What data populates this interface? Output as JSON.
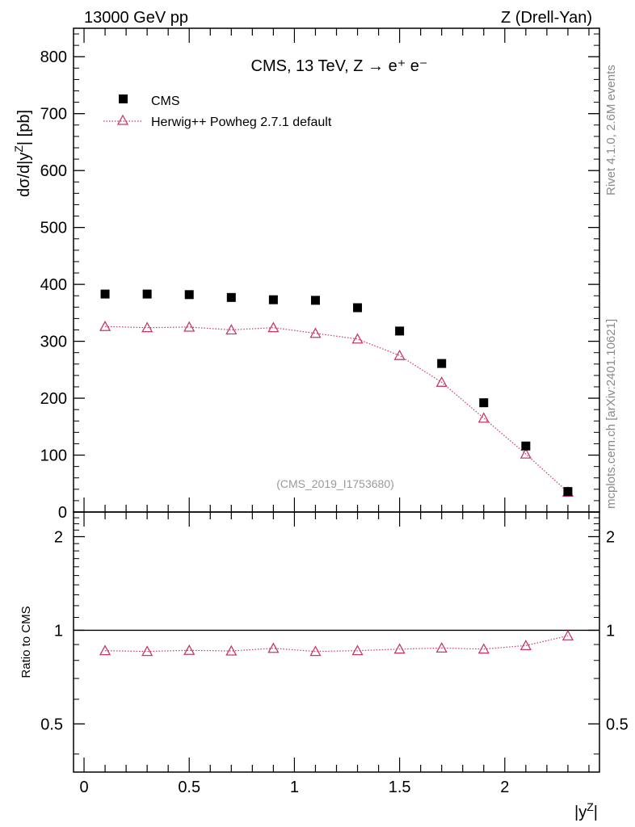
{
  "header": {
    "left": "13000 GeV pp",
    "right": "Z (Drell-Yan)"
  },
  "side_labels": {
    "rivet": "Rivet 4.1.0,  2.6M events",
    "mcplots": "mcplots.cern.ch [arXiv:2401.10621]"
  },
  "chart_data": [
    {
      "type": "scatter",
      "panel": "main",
      "title": "CMS, 13 TeV, Z →  e⁺ e⁻",
      "ylabel": "dσ/d|y^Z| [pb]",
      "analysis_tag": "(CMS_2019_I1753680)",
      "xlim": [
        -0.05,
        2.45
      ],
      "ylim": [
        0,
        850
      ],
      "yticks": [
        0,
        100,
        200,
        300,
        400,
        500,
        600,
        700,
        800
      ],
      "x": [
        0.1,
        0.3,
        0.5,
        0.7,
        0.9,
        1.1,
        1.3,
        1.5,
        1.7,
        1.9,
        2.1,
        2.3
      ],
      "legend_position": "top-left",
      "series": [
        {
          "name": "CMS",
          "marker": "square",
          "color": "#000000",
          "values": [
            383,
            383,
            382,
            377,
            373,
            372,
            359,
            318,
            261,
            192,
            116,
            36
          ]
        },
        {
          "name": "Herwig++ Powheg 2.7.1 default",
          "marker": "triangle",
          "line": "dotted",
          "color": "#c8386c",
          "values": [
            326,
            324,
            325,
            320,
            324,
            314,
            304,
            275,
            228,
            165,
            102,
            35
          ]
        }
      ]
    },
    {
      "type": "line",
      "panel": "ratio",
      "ylabel": "Ratio to CMS",
      "xlabel": "|y^Z|",
      "xlim": [
        -0.05,
        2.45
      ],
      "ylim": [
        0.35,
        2.4
      ],
      "ytick_labels": [
        "0.5",
        "1",
        "2"
      ],
      "ytick_values": [
        0.5,
        1,
        2
      ],
      "xtick_labels": [
        "0",
        "0.5",
        "1",
        "1.5",
        "2"
      ],
      "xtick_values": [
        0,
        0.5,
        1,
        1.5,
        2
      ],
      "reference": 1.0,
      "x": [
        0.1,
        0.3,
        0.5,
        0.7,
        0.9,
        1.1,
        1.3,
        1.5,
        1.7,
        1.9,
        2.1,
        2.3
      ],
      "series": [
        {
          "name": "Herwig++ Powheg 2.7.1 default",
          "color": "#c8386c",
          "values": [
            0.86,
            0.855,
            0.862,
            0.858,
            0.875,
            0.855,
            0.86,
            0.87,
            0.877,
            0.87,
            0.893,
            0.96
          ]
        }
      ]
    }
  ]
}
